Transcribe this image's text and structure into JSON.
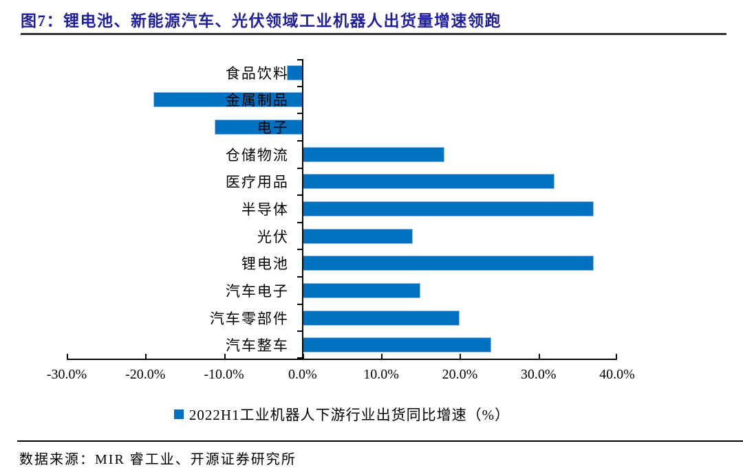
{
  "title": {
    "text": "图7：锂电池、新能源汽车、光伏领域工业机器人出货量增速领跑"
  },
  "colors": {
    "bar": "#0070c0",
    "bar_border": "#93bde6",
    "title": "#1f1f9e",
    "axis": "#000000"
  },
  "chart_data": {
    "type": "bar",
    "orientation": "horizontal",
    "categories": [
      "食品饮料",
      "金属制品",
      "电子",
      "仓储物流",
      "医疗用品",
      "半导体",
      "光伏",
      "锂电池",
      "汽车电子",
      "汽车零部件",
      "汽车整车"
    ],
    "values": [
      -2.0,
      -19.0,
      -11.2,
      18.0,
      32.0,
      37.0,
      14.0,
      37.0,
      15.0,
      20.0,
      24.0
    ],
    "legend": "2022H1工业机器人下游行业出货同比增速（%）",
    "legend_position": "bottom",
    "x_tick_labels": [
      "-30.0%",
      "-20.0%",
      "-10.0%",
      "0.0%",
      "10.0%",
      "20.0%",
      "30.0%",
      "40.0%"
    ],
    "x_tick_values": [
      -30,
      -20,
      -10,
      0,
      10,
      20,
      30,
      40
    ],
    "xlim": [
      -30,
      40
    ],
    "grid": false,
    "unit": "%"
  },
  "footer": {
    "source": "数据来源：MIR 睿工业、开源证券研究所"
  }
}
